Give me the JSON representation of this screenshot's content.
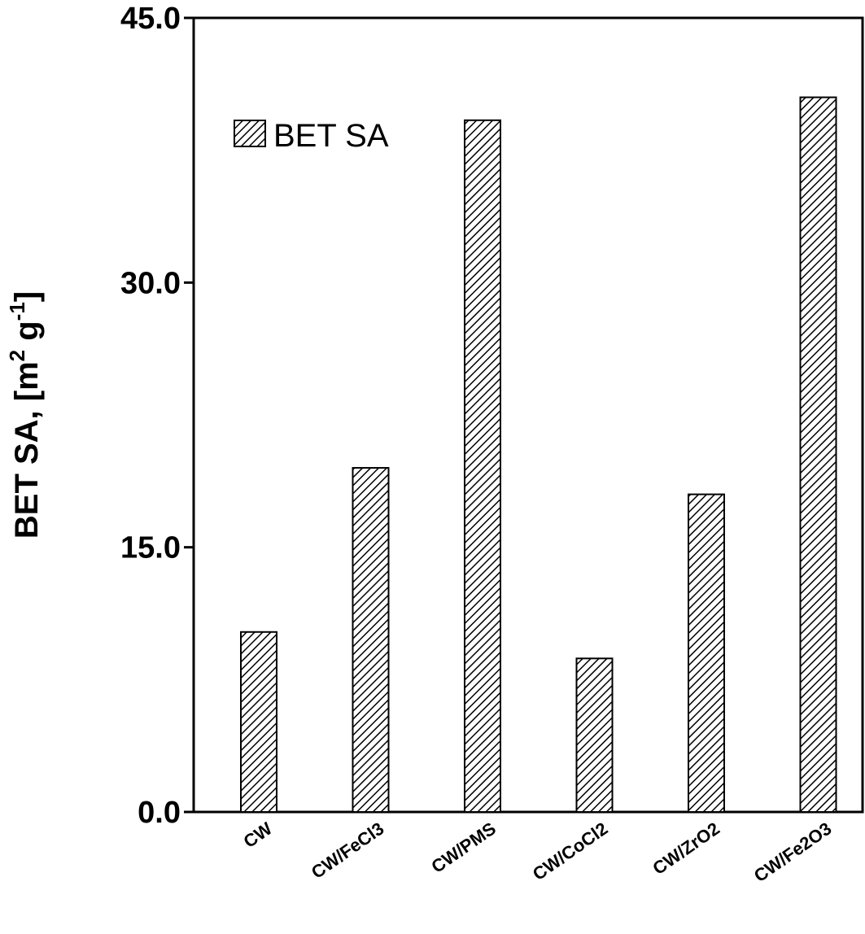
{
  "chart_data": {
    "type": "bar",
    "categories": [
      "CW",
      "CW/FeCl3",
      "CW/PMS",
      "CW/CoCl2",
      "CW/ZrO2",
      "CW/Fe2O3"
    ],
    "series": [
      {
        "name": "BET SA",
        "values": [
          10.2,
          19.5,
          39.2,
          8.7,
          18.0,
          40.5
        ]
      }
    ],
    "ylabel_main": "BET SA, [m",
    "ylabel_sup1": "2",
    "ylabel_mid": " g",
    "ylabel_sup2": "-1",
    "ylabel_end": "]",
    "ylim": [
      0,
      45
    ],
    "yticks": [
      "0.0",
      "15.0",
      "30.0",
      "45.0"
    ],
    "ytick_values": [
      0,
      15,
      30,
      45
    ],
    "legend_label": "BET SA",
    "legend_position": "top-left",
    "bar_pattern": "diagonal-hatch",
    "colors": {
      "hatch": "#000000",
      "background": "#ffffff"
    }
  }
}
